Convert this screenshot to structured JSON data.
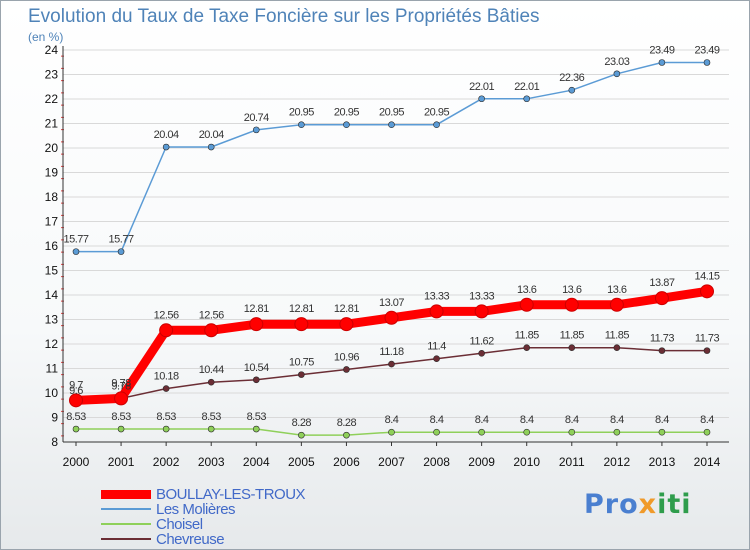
{
  "chart_data": {
    "type": "line",
    "title": "Evolution du Taux de Taxe Foncière sur les Propriétés Bâties",
    "subtitle": "(en %)",
    "xlabel": "",
    "ylabel": "",
    "x": [
      "2000",
      "2001",
      "2002",
      "2003",
      "2004",
      "2005",
      "2006",
      "2007",
      "2008",
      "2009",
      "2010",
      "2011",
      "2012",
      "2013",
      "2014"
    ],
    "ylim": [
      8,
      24
    ],
    "yticks": [
      "8",
      "9",
      "10",
      "11",
      "12",
      "13",
      "14",
      "15",
      "16",
      "17",
      "18",
      "19",
      "20",
      "21",
      "22",
      "23",
      "24"
    ],
    "legend_position": "bottom-left",
    "series": [
      {
        "name": "BOULLAY-LES-TROUX",
        "color": "#ff0000",
        "values": [
          9.7,
          9.78,
          12.56,
          12.56,
          12.81,
          12.81,
          12.81,
          13.07,
          13.33,
          13.33,
          13.6,
          13.6,
          13.6,
          13.87,
          14.15
        ],
        "labels": [
          "9.7",
          "9.78",
          "12.56",
          "12.56",
          "12.81",
          "12.81",
          "12.81",
          "13.07",
          "13.33",
          "13.33",
          "13.6",
          "13.6",
          "13.6",
          "13.87",
          "14.15"
        ]
      },
      {
        "name": "Les Molières",
        "color": "#5b9bd5",
        "values": [
          15.77,
          15.77,
          20.04,
          20.04,
          20.74,
          20.95,
          20.95,
          20.95,
          20.95,
          22.01,
          22.01,
          22.36,
          23.03,
          23.49,
          23.49
        ],
        "labels": [
          "15.77",
          "15.77",
          "20.04",
          "20.04",
          "20.74",
          "20.95",
          "20.95",
          "20.95",
          "20.95",
          "22.01",
          "22.01",
          "22.36",
          "23.03",
          "23.49",
          "23.49"
        ]
      },
      {
        "name": "Choisel",
        "color": "#8fd05a",
        "values": [
          8.53,
          8.53,
          8.53,
          8.53,
          8.53,
          8.28,
          8.28,
          8.4,
          8.4,
          8.4,
          8.4,
          8.4,
          8.4,
          8.4,
          8.4
        ],
        "labels": [
          "8.53",
          "8.53",
          "8.53",
          "8.53",
          "8.53",
          "8.28",
          "8.28",
          "8.4",
          "8.4",
          "8.4",
          "8.4",
          "8.4",
          "8.4",
          "8.4",
          "8.4"
        ]
      },
      {
        "name": "Chevreuse",
        "color": "#6b2e35",
        "values": [
          9.6,
          9.78,
          10.18,
          10.44,
          10.54,
          10.75,
          10.96,
          11.18,
          11.4,
          11.62,
          11.85,
          11.85,
          11.85,
          11.73,
          11.73
        ],
        "labels": [
          "9.6",
          "9.78",
          "10.18",
          "10.44",
          "10.54",
          "10.75",
          "10.96",
          "11.18",
          "11.4",
          "11.62",
          "11.85",
          "11.85",
          "11.85",
          "11.73",
          "11.73"
        ]
      }
    ]
  },
  "logo": {
    "p1": "Pro",
    "p2": "x",
    "p3": "iti"
  }
}
